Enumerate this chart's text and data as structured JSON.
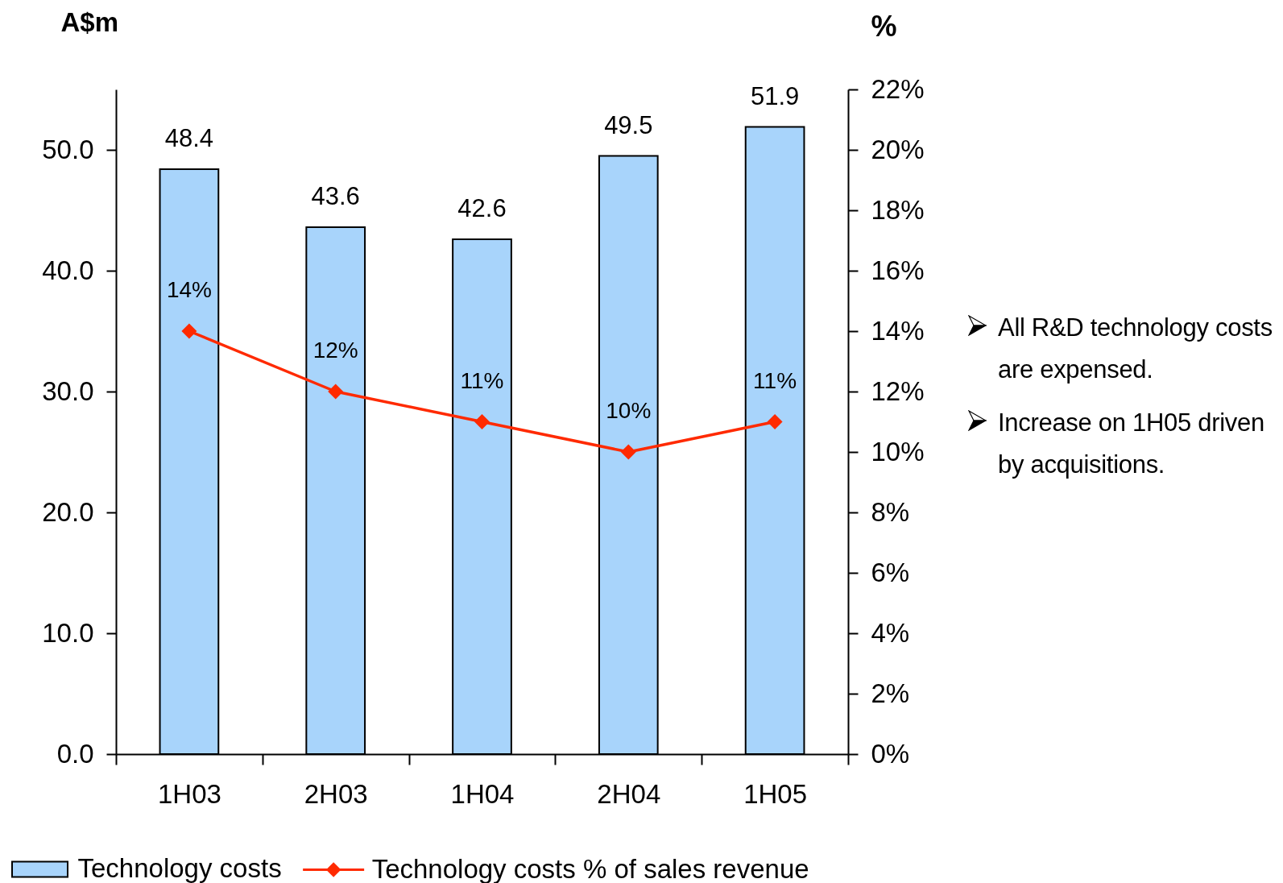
{
  "chart_data": {
    "type": "bar",
    "ylabel": "A$m",
    "y2label": "%",
    "categories": [
      "1H03",
      "2H03",
      "1H04",
      "2H04",
      "1H05"
    ],
    "series": [
      {
        "name": "Technology costs",
        "color": "#a8d4fb",
        "values": [
          48.4,
          43.6,
          42.6,
          49.5,
          51.9
        ],
        "value_labels": [
          "48.4",
          "43.6",
          "42.6",
          "49.5",
          "51.9"
        ]
      },
      {
        "name": "Technology costs % of sales revenue",
        "type": "line",
        "axis": "y2",
        "color": "#ff2a00",
        "values": [
          14,
          12,
          11,
          10,
          11
        ],
        "value_labels": [
          "14%",
          "12%",
          "11%",
          "10%",
          "11%"
        ]
      }
    ],
    "ylim": [
      0,
      55
    ],
    "yticks": [
      {
        "value": 0,
        "label": "0.0"
      },
      {
        "value": 10,
        "label": "10.0"
      },
      {
        "value": 20,
        "label": "20.0"
      },
      {
        "value": 30,
        "label": "30.0"
      },
      {
        "value": 40,
        "label": "40.0"
      },
      {
        "value": 50,
        "label": "50.0"
      }
    ],
    "y2lim": [
      0,
      22
    ],
    "y2ticks": [
      {
        "value": 0,
        "label": "0%"
      },
      {
        "value": 2,
        "label": "2%"
      },
      {
        "value": 4,
        "label": "4%"
      },
      {
        "value": 6,
        "label": "6%"
      },
      {
        "value": 8,
        "label": "8%"
      },
      {
        "value": 10,
        "label": "10%"
      },
      {
        "value": 12,
        "label": "12%"
      },
      {
        "value": 14,
        "label": "14%"
      },
      {
        "value": 16,
        "label": "16%"
      },
      {
        "value": 18,
        "label": "18%"
      },
      {
        "value": 20,
        "label": "20%"
      },
      {
        "value": 22,
        "label": "22%"
      }
    ],
    "legend": "bottom",
    "marker": "diamond",
    "annotations": [
      "All R&D technology costs are expensed.",
      "Increase on 1H05 driven by acquisitions."
    ]
  }
}
